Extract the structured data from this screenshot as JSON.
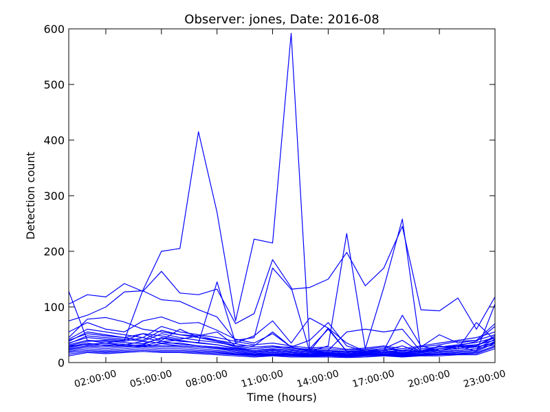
{
  "chart_data": {
    "type": "line",
    "title": "Observer: jones, Date: 2016-08",
    "xlabel": "Time (hours)",
    "ylabel": "Detection count",
    "x": [
      "00:00:00",
      "01:00:00",
      "02:00:00",
      "03:00:00",
      "04:00:00",
      "05:00:00",
      "06:00:00",
      "07:00:00",
      "08:00:00",
      "09:00:00",
      "10:00:00",
      "11:00:00",
      "12:00:00",
      "13:00:00",
      "14:00:00",
      "15:00:00",
      "16:00:00",
      "17:00:00",
      "18:00:00",
      "19:00:00",
      "20:00:00",
      "21:00:00",
      "22:00:00",
      "23:00:00"
    ],
    "xticks": [
      "02:00:00",
      "05:00:00",
      "08:00:00",
      "11:00:00",
      "14:00:00",
      "17:00:00",
      "20:00:00",
      "23:00:00"
    ],
    "ylim": [
      0,
      600
    ],
    "yticks": [
      0,
      100,
      200,
      300,
      400,
      500,
      600
    ],
    "grid": false,
    "series": [
      {
        "values": [
          30,
          32,
          35,
          40,
          130,
          200,
          205,
          415,
          270,
          75,
          222,
          215,
          592,
          25,
          60,
          20,
          15,
          18,
          22,
          20,
          25,
          30,
          28,
          35
        ]
      },
      {
        "values": [
          105,
          122,
          118,
          142,
          128,
          164,
          125,
          122,
          132,
          70,
          88,
          185,
          135,
          20,
          30,
          232,
          25,
          135,
          258,
          20,
          25,
          30,
          32,
          40
        ]
      },
      {
        "values": [
          75,
          85,
          100,
          127,
          129,
          113,
          110,
          95,
          82,
          40,
          45,
          170,
          132,
          135,
          150,
          198,
          138,
          170,
          245,
          95,
          93,
          116,
          60,
          118
        ]
      },
      {
        "values": [
          128,
          40,
          35,
          30,
          32,
          45,
          40,
          35,
          145,
          35,
          48,
          75,
          35,
          80,
          62,
          20,
          18,
          22,
          85,
          30,
          22,
          28,
          30,
          45
        ]
      },
      {
        "values": [
          55,
          72,
          60,
          55,
          75,
          82,
          70,
          72,
          58,
          42,
          35,
          52,
          28,
          40,
          72,
          30,
          20,
          25,
          40,
          18,
          30,
          25,
          72,
          40
        ]
      },
      {
        "values": [
          45,
          78,
          81,
          73,
          60,
          55,
          50,
          48,
          55,
          30,
          30,
          55,
          28,
          20,
          62,
          35,
          20,
          22,
          30,
          18,
          25,
          30,
          28,
          35
        ]
      },
      {
        "values": [
          40,
          52,
          48,
          45,
          52,
          48,
          42,
          48,
          40,
          30,
          25,
          28,
          28,
          22,
          22,
          55,
          60,
          55,
          60,
          20,
          25,
          30,
          20,
          105
        ]
      },
      {
        "values": [
          35,
          45,
          42,
          40,
          52,
          40,
          60,
          45,
          38,
          28,
          22,
          25,
          22,
          20,
          22,
          18,
          22,
          25,
          22,
          28,
          50,
          35,
          40,
          70
        ]
      },
      {
        "values": [
          30,
          38,
          40,
          38,
          45,
          38,
          40,
          35,
          32,
          25,
          20,
          22,
          20,
          18,
          20,
          18,
          20,
          22,
          18,
          22,
          28,
          30,
          38,
          65
        ]
      },
      {
        "values": [
          28,
          35,
          30,
          32,
          38,
          35,
          35,
          30,
          28,
          22,
          18,
          20,
          18,
          16,
          18,
          16,
          18,
          20,
          16,
          20,
          22,
          25,
          30,
          48
        ]
      },
      {
        "values": [
          25,
          30,
          28,
          30,
          32,
          30,
          30,
          28,
          25,
          20,
          16,
          18,
          16,
          15,
          16,
          14,
          16,
          18,
          15,
          18,
          20,
          22,
          25,
          42
        ]
      },
      {
        "values": [
          22,
          28,
          25,
          28,
          30,
          28,
          28,
          25,
          22,
          18,
          15,
          16,
          15,
          14,
          15,
          13,
          15,
          16,
          14,
          16,
          18,
          20,
          22,
          38
        ]
      },
      {
        "values": [
          20,
          25,
          22,
          25,
          28,
          25,
          25,
          22,
          20,
          16,
          14,
          15,
          14,
          13,
          14,
          12,
          14,
          15,
          13,
          15,
          16,
          18,
          20,
          35
        ]
      },
      {
        "values": [
          18,
          22,
          20,
          22,
          25,
          22,
          22,
          20,
          18,
          15,
          13,
          14,
          13,
          12,
          13,
          11,
          13,
          14,
          12,
          14,
          15,
          16,
          18,
          30
        ]
      },
      {
        "values": [
          15,
          20,
          18,
          20,
          22,
          20,
          20,
          18,
          16,
          14,
          12,
          13,
          12,
          11,
          12,
          10,
          12,
          13,
          11,
          13,
          14,
          15,
          16,
          28
        ]
      },
      {
        "values": [
          12,
          18,
          16,
          18,
          20,
          18,
          18,
          16,
          14,
          12,
          10,
          12,
          10,
          10,
          10,
          9,
          10,
          12,
          10,
          12,
          12,
          14,
          14,
          25
        ]
      },
      {
        "values": [
          42,
          60,
          55,
          50,
          45,
          65,
          55,
          50,
          45,
          38,
          32,
          35,
          30,
          26,
          28,
          24,
          26,
          30,
          25,
          30,
          35,
          40,
          45,
          55
        ]
      },
      {
        "values": [
          38,
          55,
          50,
          45,
          40,
          58,
          50,
          45,
          40,
          34,
          28,
          30,
          26,
          24,
          25,
          22,
          24,
          28,
          22,
          28,
          32,
          38,
          40,
          50
        ]
      },
      {
        "values": [
          34,
          48,
          45,
          42,
          38,
          52,
          45,
          40,
          36,
          30,
          25,
          28,
          24,
          22,
          22,
          20,
          22,
          25,
          20,
          25,
          28,
          32,
          36,
          45
        ]
      },
      {
        "values": [
          32,
          40,
          38,
          36,
          34,
          44,
          38,
          36,
          32,
          26,
          22,
          24,
          22,
          20,
          20,
          18,
          20,
          22,
          18,
          22,
          25,
          28,
          32,
          40
        ]
      },
      {
        "values": [
          27,
          33,
          35,
          33,
          30,
          38,
          33,
          30,
          28,
          24,
          20,
          22,
          20,
          18,
          18,
          16,
          18,
          20,
          17,
          20,
          22,
          25,
          28,
          36
        ]
      },
      {
        "values": [
          24,
          30,
          32,
          30,
          28,
          34,
          30,
          28,
          26,
          22,
          18,
          20,
          18,
          16,
          17,
          15,
          17,
          18,
          15,
          18,
          20,
          22,
          25,
          32
        ]
      }
    ]
  }
}
